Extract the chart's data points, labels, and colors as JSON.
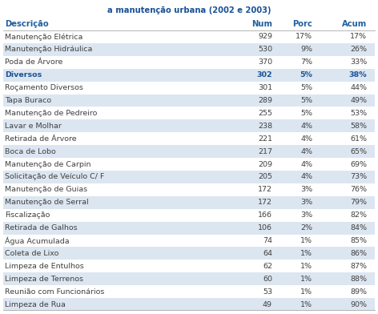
{
  "title": "a manutenção urbana (2002 e 2003)",
  "col_headers": [
    "Descrição",
    "Num",
    "Porc",
    "Acum"
  ],
  "rows": [
    {
      "desc": "Manutenção Elétrica",
      "num": "929",
      "porc": "17%",
      "acum": "17%",
      "bold": false,
      "highlight": false
    },
    {
      "desc": "Manutenção Hidráulica",
      "num": "530",
      "porc": "9%",
      "acum": "26%",
      "bold": false,
      "highlight": true
    },
    {
      "desc": "Poda de Árvore",
      "num": "370",
      "porc": "7%",
      "acum": "33%",
      "bold": false,
      "highlight": false
    },
    {
      "desc": "Diversos",
      "num": "302",
      "porc": "5%",
      "acum": "38%",
      "bold": true,
      "highlight": true
    },
    {
      "desc": "Roçamento Diversos",
      "num": "301",
      "porc": "5%",
      "acum": "44%",
      "bold": false,
      "highlight": false
    },
    {
      "desc": "Tapa Buraco",
      "num": "289",
      "porc": "5%",
      "acum": "49%",
      "bold": false,
      "highlight": true
    },
    {
      "desc": "Manutenção de Pedreiro",
      "num": "255",
      "porc": "5%",
      "acum": "53%",
      "bold": false,
      "highlight": false
    },
    {
      "desc": "Lavar e Molhar",
      "num": "238",
      "porc": "4%",
      "acum": "58%",
      "bold": false,
      "highlight": true
    },
    {
      "desc": "Retirada de Árvore",
      "num": "221",
      "porc": "4%",
      "acum": "61%",
      "bold": false,
      "highlight": false
    },
    {
      "desc": "Boca de Lobo",
      "num": "217",
      "porc": "4%",
      "acum": "65%",
      "bold": false,
      "highlight": true
    },
    {
      "desc": "Manutenção de Carpin",
      "num": "209",
      "porc": "4%",
      "acum": "69%",
      "bold": false,
      "highlight": false
    },
    {
      "desc": "Solicitação de Veículo C/ F",
      "num": "205",
      "porc": "4%",
      "acum": "73%",
      "bold": false,
      "highlight": true
    },
    {
      "desc": "Manutenção de Guias",
      "num": "172",
      "porc": "3%",
      "acum": "76%",
      "bold": false,
      "highlight": false
    },
    {
      "desc": "Manutenção de Serral",
      "num": "172",
      "porc": "3%",
      "acum": "79%",
      "bold": false,
      "highlight": true
    },
    {
      "desc": "Fiscalização",
      "num": "166",
      "porc": "3%",
      "acum": "82%",
      "bold": false,
      "highlight": false
    },
    {
      "desc": "Retirada de Galhos",
      "num": "106",
      "porc": "2%",
      "acum": "84%",
      "bold": false,
      "highlight": true
    },
    {
      "desc": "Água Acumulada",
      "num": "74",
      "porc": "1%",
      "acum": "85%",
      "bold": false,
      "highlight": false
    },
    {
      "desc": "Coleta de Lixo",
      "num": "64",
      "porc": "1%",
      "acum": "86%",
      "bold": false,
      "highlight": true
    },
    {
      "desc": "Limpeza de Entulhos",
      "num": "62",
      "porc": "1%",
      "acum": "87%",
      "bold": false,
      "highlight": false
    },
    {
      "desc": "Limpeza de Terrenos",
      "num": "60",
      "porc": "1%",
      "acum": "88%",
      "bold": false,
      "highlight": true
    },
    {
      "desc": "Reunião com Funcionários",
      "num": "53",
      "porc": "1%",
      "acum": "89%",
      "bold": false,
      "highlight": false
    },
    {
      "desc": "Limpeza de Rua",
      "num": "49",
      "porc": "1%",
      "acum": "90%",
      "bold": false,
      "highlight": true
    }
  ],
  "header_color": "#2060a0",
  "bold_row_color": "#1a5296",
  "highlight_bg": "#dce6f1",
  "normal_bg": "#ffffff",
  "text_color": "#404040",
  "title_color": "#1a5296",
  "fig_width": 4.72,
  "fig_height": 3.92,
  "dpi": 100
}
